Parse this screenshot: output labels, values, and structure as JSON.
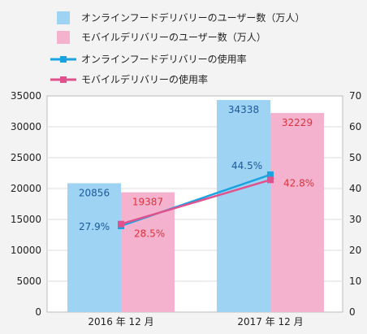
{
  "chart_data": {
    "type": "bar",
    "categories": [
      "2016 年 12 月",
      "2017 年 12 月"
    ],
    "series": [
      {
        "name": "オンラインフードデリバリーのユーザー数（万人）",
        "kind": "bar",
        "axis": "left",
        "values": [
          20856,
          34338
        ],
        "labels": [
          "20856",
          "34338"
        ],
        "color": "#9fd3f3",
        "label_color": "#1a5aa0"
      },
      {
        "name": "モバイルデリバリーのユーザー数（万人）",
        "kind": "bar",
        "axis": "left",
        "values": [
          19387,
          32229
        ],
        "labels": [
          "19387",
          "32229"
        ],
        "color": "#f4b2cf",
        "label_color": "#e0323a"
      },
      {
        "name": "オンラインフードデリバリーの使用率",
        "kind": "line",
        "axis": "right",
        "values": [
          27.9,
          44.5
        ],
        "labels": [
          "27.9%",
          "44.5%"
        ],
        "color": "#1aa3e0",
        "label_color": "#1a5aa0"
      },
      {
        "name": "モバイルデリバリーの使用率",
        "kind": "line",
        "axis": "right",
        "values": [
          28.5,
          42.8
        ],
        "labels": [
          "28.5%",
          "42.8%"
        ],
        "color": "#e0528d",
        "label_color": "#e0323a"
      }
    ],
    "ylim": [
      0,
      35000
    ],
    "y2lim": [
      0,
      70
    ],
    "yticks": [
      "0",
      "5000",
      "10000",
      "15000",
      "20000",
      "25000",
      "30000",
      "35000"
    ],
    "y2ticks": [
      "0",
      "10",
      "20",
      "30",
      "40",
      "50",
      "60",
      "70"
    ],
    "grid": true,
    "legend_position": "top-left"
  }
}
